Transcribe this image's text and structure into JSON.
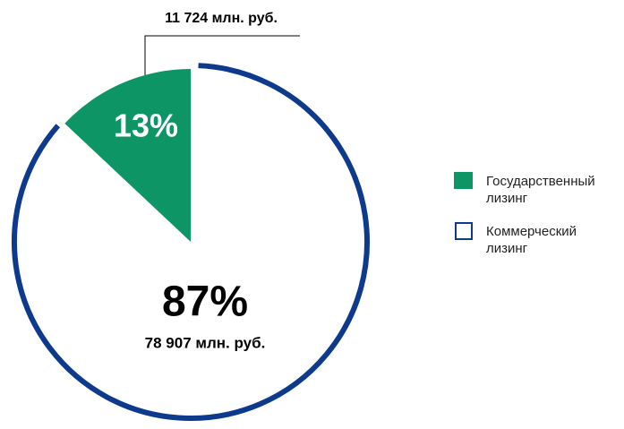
{
  "chart_data": {
    "type": "pie",
    "categories": [
      "Государственный лизинг",
      "Коммерческий лизинг"
    ],
    "values": [
      13,
      87
    ],
    "value_labels": [
      "13%",
      "87%"
    ],
    "amount_labels": [
      "11 724 млн. руб.",
      "78 907 млн. руб."
    ],
    "colors": [
      "#0e9566",
      "#0d3a8c"
    ],
    "styles": [
      "filled",
      "outline"
    ],
    "legend": "right"
  }
}
